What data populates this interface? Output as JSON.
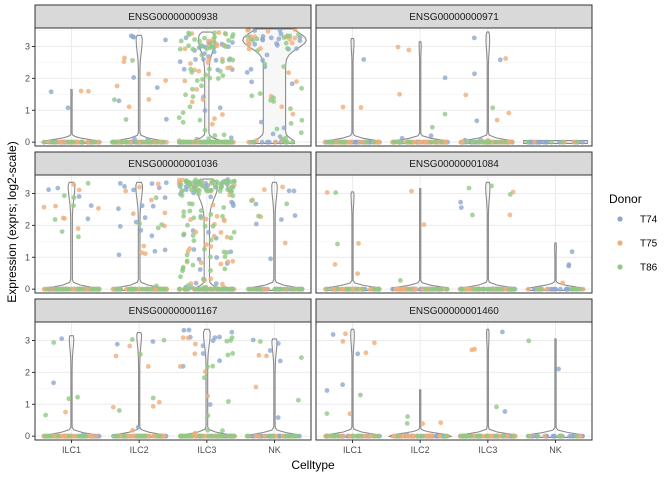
{
  "chart_data": {
    "type": "violin",
    "xlabel": "Celltype",
    "ylabel": "Expression (exprs; log2-scale)",
    "categories": [
      "ILC1",
      "ILC2",
      "ILC3",
      "NK"
    ],
    "y_ticks": [
      0,
      1,
      2,
      3
    ],
    "ylim": [
      -0.12,
      3.58
    ],
    "grid": true,
    "legend": {
      "title": "Donor",
      "placement": "right",
      "items": [
        {
          "name": "T74",
          "color": "#8ea8cf"
        },
        {
          "name": "T75",
          "color": "#efae79"
        },
        {
          "name": "T86",
          "color": "#8fc983"
        }
      ]
    },
    "violin_color": "#8a8a8a",
    "panels": [
      {
        "gene": "ENSG00000000938",
        "groups": [
          {
            "celltype": "ILC1",
            "zero_fraction": 0.92,
            "counts": [
              28,
              26,
              10
            ],
            "top_values": [
              1.6,
              1.4,
              1.1
            ]
          },
          {
            "celltype": "ILC2",
            "zero_fraction": 0.8,
            "counts": [
              40,
              38,
              18
            ],
            "top_values": [
              3.3,
              3.2,
              1.8,
              1.3,
              1.1,
              0.9,
              0.7
            ]
          },
          {
            "celltype": "ILC3",
            "zero_fraction": 0.45,
            "counts": [
              60,
              55,
              90
            ],
            "top_values": [
              3.4,
              3.3,
              3.2,
              3.1,
              3.0,
              2.9,
              2.6,
              2.3
            ]
          },
          {
            "celltype": "NK",
            "zero_fraction": 0.15,
            "counts": [
              35,
              25,
              30
            ],
            "top_values": [
              3.5,
              3.4,
              3.3,
              3.2,
              3.1,
              2.9
            ]
          }
        ]
      },
      {
        "gene": "ENSG00000000971",
        "groups": [
          {
            "celltype": "ILC1",
            "zero_fraction": 0.9,
            "counts": [
              25,
              30,
              12
            ],
            "top_values": [
              3.2,
              3.1,
              2.6,
              1.1,
              0.8
            ]
          },
          {
            "celltype": "ILC2",
            "zero_fraction": 0.93,
            "counts": [
              30,
              34,
              12
            ],
            "top_values": [
              3.1,
              3.0,
              2.8,
              2.0,
              1.2
            ]
          },
          {
            "celltype": "ILC3",
            "zero_fraction": 0.88,
            "counts": [
              36,
              30,
              14
            ],
            "top_values": [
              3.4,
              3.3,
              3.0,
              2.6,
              1.1
            ]
          },
          {
            "celltype": "NK",
            "zero_fraction": 1.0,
            "counts": [
              20,
              4,
              4
            ],
            "top_values": []
          }
        ]
      },
      {
        "gene": "ENSG00000001036",
        "groups": [
          {
            "celltype": "ILC1",
            "zero_fraction": 0.78,
            "counts": [
              40,
              45,
              25
            ],
            "top_values": [
              3.3,
              3.2,
              3.1,
              2.9,
              2.6,
              2.2
            ]
          },
          {
            "celltype": "ILC2",
            "zero_fraction": 0.78,
            "counts": [
              38,
              42,
              26
            ],
            "top_values": [
              3.3,
              3.2,
              3.1,
              2.9,
              2.4,
              2.0
            ]
          },
          {
            "celltype": "ILC3",
            "zero_fraction": 0.3,
            "counts": [
              55,
              60,
              120
            ],
            "top_values": [
              3.4,
              3.35,
              3.3,
              3.25,
              3.2,
              3.1
            ]
          },
          {
            "celltype": "NK",
            "zero_fraction": 0.82,
            "counts": [
              30,
              20,
              18
            ],
            "top_values": [
              3.3,
              3.2,
              3.1,
              2.8,
              2.3
            ]
          }
        ]
      },
      {
        "gene": "ENSG00000001084",
        "groups": [
          {
            "celltype": "ILC1",
            "zero_fraction": 0.9,
            "counts": [
              25,
              30,
              12
            ],
            "top_values": [
              3.0,
              2.9,
              2.1,
              1.4,
              0.8
            ]
          },
          {
            "celltype": "ILC2",
            "zero_fraction": 0.97,
            "counts": [
              32,
              34,
              10
            ],
            "top_values": [
              3.1,
              2.0,
              0.3
            ]
          },
          {
            "celltype": "ILC3",
            "zero_fraction": 0.86,
            "counts": [
              40,
              30,
              26
            ],
            "top_values": [
              3.3,
              3.2,
              3.0,
              2.9,
              2.6,
              2.3,
              1.9
            ]
          },
          {
            "celltype": "NK",
            "zero_fraction": 0.9,
            "counts": [
              22,
              8,
              8
            ],
            "top_values": [
              1.4,
              1.2,
              0.8,
              0.7
            ]
          }
        ]
      },
      {
        "gene": "ENSG00000001167",
        "groups": [
          {
            "celltype": "ILC1",
            "zero_fraction": 0.85,
            "counts": [
              28,
              32,
              16
            ],
            "top_values": [
              3.1,
              3.0,
              2.9,
              2.6,
              2.5,
              2.1,
              1.2
            ]
          },
          {
            "celltype": "ILC2",
            "zero_fraction": 0.84,
            "counts": [
              34,
              38,
              18
            ],
            "top_values": [
              3.2,
              3.1,
              3.0,
              2.9,
              2.6,
              2.3,
              1.2
            ]
          },
          {
            "celltype": "ILC3",
            "zero_fraction": 0.78,
            "counts": [
              50,
              40,
              34
            ],
            "top_values": [
              3.3,
              3.1,
              3.0,
              2.9,
              2.6,
              2.2,
              1.8
            ]
          },
          {
            "celltype": "NK",
            "zero_fraction": 0.83,
            "counts": [
              30,
              14,
              14
            ],
            "top_values": [
              3.0,
              2.9,
              2.7,
              2.5,
              2.2,
              1.9
            ]
          }
        ]
      },
      {
        "gene": "ENSG00000001460",
        "groups": [
          {
            "celltype": "ILC1",
            "zero_fraction": 0.88,
            "counts": [
              26,
              30,
              14
            ],
            "top_values": [
              3.3,
              3.2,
              2.9,
              2.6,
              1.6,
              0.7
            ]
          },
          {
            "celltype": "ILC2",
            "zero_fraction": 0.97,
            "counts": [
              30,
              34,
              8
            ],
            "top_values": [
              1.4,
              1.2,
              0.6,
              0.4
            ]
          },
          {
            "celltype": "ILC3",
            "zero_fraction": 0.92,
            "counts": [
              40,
              30,
              16
            ],
            "top_values": [
              3.3,
              2.7,
              2.6,
              1.2,
              0.9
            ]
          },
          {
            "celltype": "NK",
            "zero_fraction": 0.97,
            "counts": [
              20,
              6,
              6
            ],
            "top_values": [
              3.0,
              0.5
            ]
          }
        ]
      }
    ]
  }
}
